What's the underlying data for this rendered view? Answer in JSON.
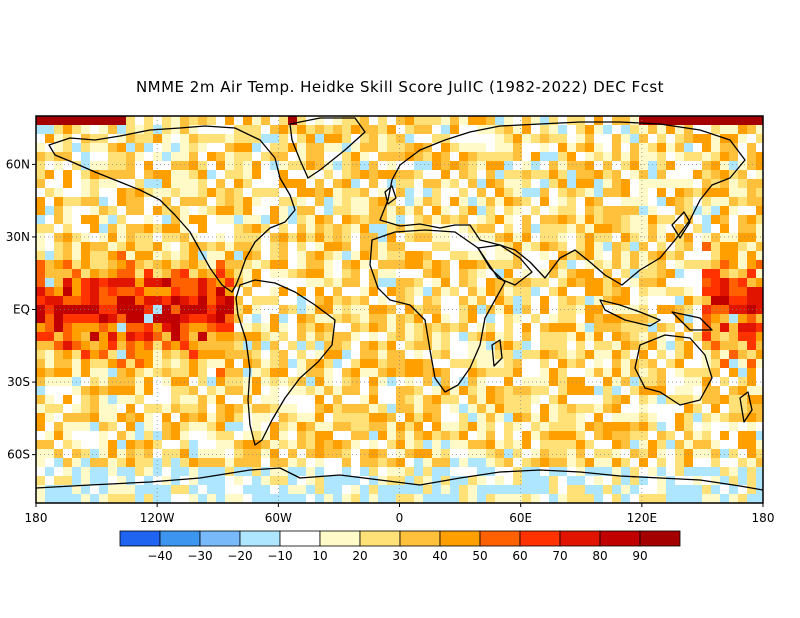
{
  "title": "NMME 2m Air Temp. Heidke Skill Score JulIC (1982-2022) DEC Fcst",
  "lat_labels": [
    "60N",
    "30N",
    "EQ",
    "30S",
    "60S"
  ],
  "lat_values": [
    60,
    30,
    0,
    -30,
    -60
  ],
  "lon_labels": [
    "180",
    "120W",
    "60W",
    "0",
    "60E",
    "120E",
    "180"
  ],
  "lon_values": [
    -180,
    -120,
    -60,
    0,
    60,
    120,
    180
  ],
  "colorbar": {
    "labels": [
      "-40",
      "-30",
      "-20",
      "-10",
      "10",
      "20",
      "30",
      "40",
      "50",
      "60",
      "70",
      "80",
      "90"
    ],
    "colors": [
      "#1e64f0",
      "#3c96f0",
      "#78b9fa",
      "#afe6ff",
      "#ffffff",
      "#fffac8",
      "#ffe178",
      "#ffc03c",
      "#ffa000",
      "#ff6000",
      "#ff3200",
      "#e11400",
      "#c00000",
      "#a50000"
    ]
  },
  "map_extent": {
    "lon_min": -180,
    "lon_max": 180,
    "lat_min": -80,
    "lat_max": 80
  }
}
